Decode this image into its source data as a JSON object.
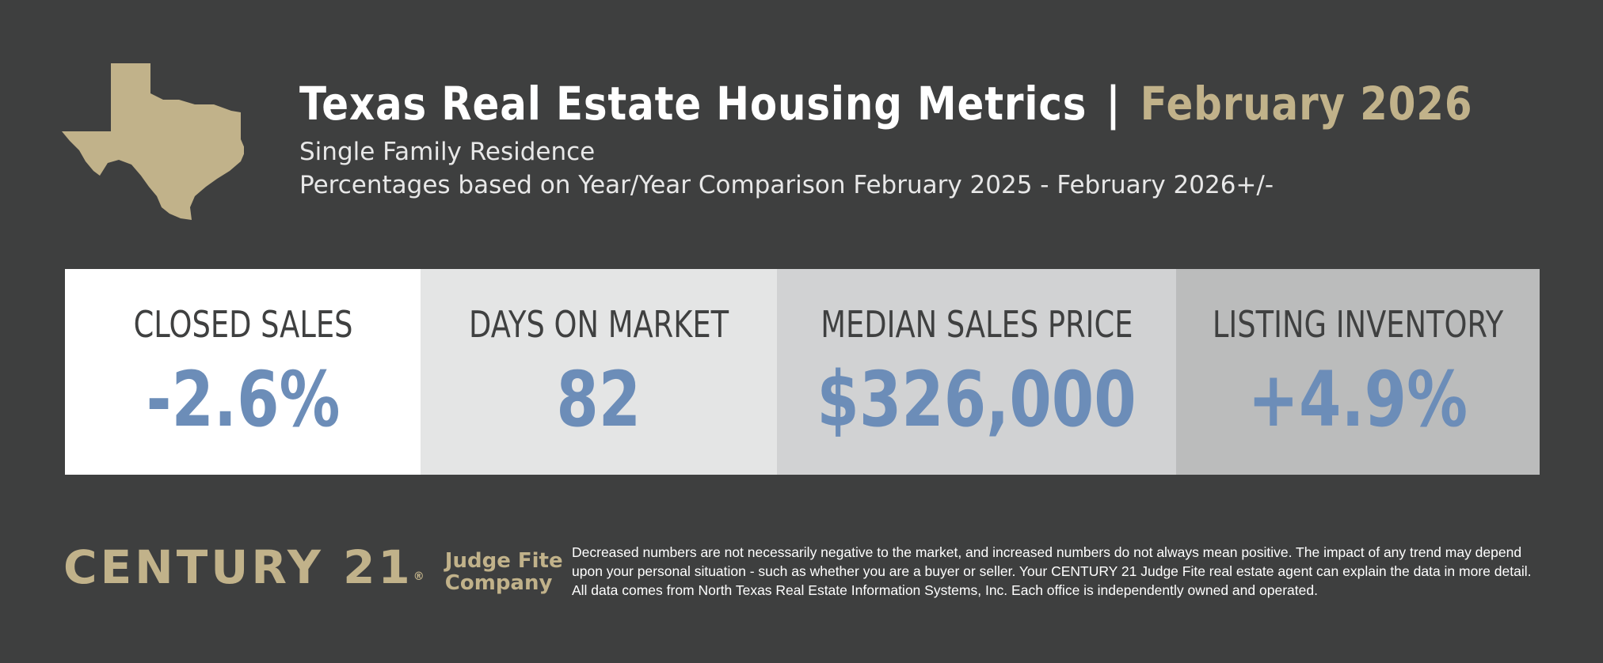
{
  "header": {
    "title": "Texas Real Estate Housing Metrics",
    "separator": "|",
    "title_date": "February 2026",
    "subtitle_1": "Single Family Residence",
    "subtitle_2": "Percentages based on Year/Year Comparison February 2025 - February 2026+/-"
  },
  "metrics": [
    {
      "label": "CLOSED SALES",
      "value": "-2.6%"
    },
    {
      "label": "DAYS ON MARKET",
      "value": "82"
    },
    {
      "label": "MEDIAN SALES PRICE",
      "value": "$326,000"
    },
    {
      "label": "LISTING INVENTORY",
      "value": "+4.9%"
    }
  ],
  "footer": {
    "brand": "CENTURY 21",
    "brand_mark": "®",
    "office_line_1": "Judge Fite",
    "office_line_2": "Company",
    "disclaimer": "Decreased numbers are not necessarily negative to the market, and increased numbers do not always mean positive. The impact of any trend may depend upon your personal situation - such as whether you are a buyer or seller. Your CENTURY 21 Judge Fite real estate agent can explain the data in more detail. All data comes from North Texas Real Estate Information Systems, Inc. Each office is independently owned and operated."
  },
  "colors": {
    "background": "#3e3f3f",
    "gold": "#c1b28a",
    "value_blue": "#6c8db8",
    "label_dark": "#3f4040"
  },
  "icons": {
    "state_map": "texas-map-icon"
  }
}
